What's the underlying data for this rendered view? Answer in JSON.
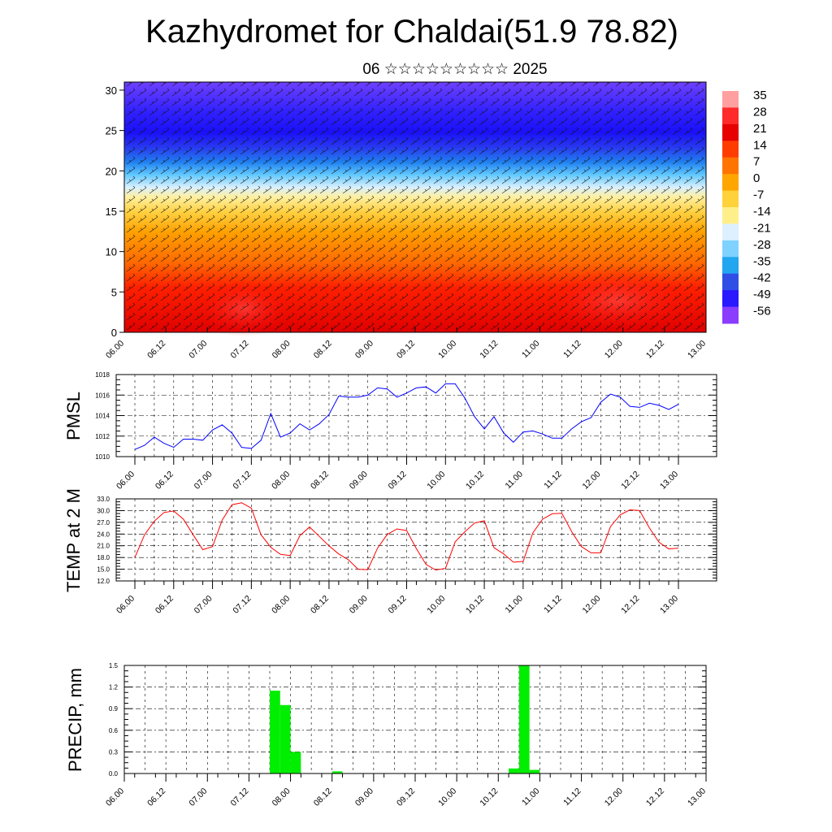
{
  "header": {
    "title": "Kazhydromet for Chaldai(51.9 78.82)",
    "subtitle": "06 ☆☆☆☆☆☆☆☆☆ 2025"
  },
  "time_ticks": [
    "06.00",
    "06.12",
    "07.00",
    "07.12",
    "08.00",
    "08.12",
    "09.00",
    "09.12",
    "10.00",
    "10.12",
    "11.00",
    "11.12",
    "12.00",
    "12.12",
    "13.00"
  ],
  "colors": {
    "pmsl": "#0000ff",
    "temp": "#ff0000",
    "precip": "#00ee00",
    "grid": "#000000"
  },
  "chart_data": [
    {
      "type": "heatmap",
      "title": "Kazhydromet for Chaldai(51.9 78.82)",
      "subtitle": "06 ☆☆☆☆☆☆☆☆☆ 2025",
      "categories": [
        "06.00",
        "06.12",
        "07.00",
        "07.12",
        "08.00",
        "08.12",
        "09.00",
        "09.12",
        "10.00",
        "10.12",
        "11.00",
        "11.12",
        "12.00",
        "12.12",
        "13.00"
      ],
      "y_ticks": [
        0,
        5,
        10,
        15,
        20,
        25,
        30
      ],
      "ylim": [
        0,
        31
      ],
      "colorbar": {
        "labels": [
          "35",
          "28",
          "21",
          "14",
          "7",
          "0",
          "-7",
          "-14",
          "-21",
          "-28",
          "-35",
          "-42",
          "-49",
          "-56"
        ],
        "colors": [
          "#ff9f9f",
          "#ff2a2a",
          "#e60000",
          "#ff3c00",
          "#ff7400",
          "#ffa600",
          "#ffd23c",
          "#ffef8a",
          "#ddf0ff",
          "#7fd2ff",
          "#22a6f0",
          "#2f4ee6",
          "#2a18ff",
          "#8a3cff"
        ]
      },
      "overlay": "wind barbs",
      "layers": [
        {
          "range": "0-8",
          "field_value": 21
        },
        {
          "range": "8-15",
          "field_value": 7
        },
        {
          "range": "15-18",
          "field_value": -14
        },
        {
          "range": "18-21",
          "field_value": -35
        },
        {
          "range": "21-31",
          "field_value": -56
        }
      ]
    },
    {
      "type": "line",
      "ylabel": "PMSL",
      "ylim": [
        1010,
        1018
      ],
      "y_ticks": [
        "1010",
        "1012",
        "1014",
        "1016",
        "1018"
      ],
      "categories": [
        "06.00",
        "06.12",
        "07.00",
        "07.12",
        "08.00",
        "08.12",
        "09.00",
        "09.12",
        "10.00",
        "10.12",
        "11.00",
        "11.12",
        "12.00",
        "12.12",
        "13.00"
      ],
      "x": [
        0,
        1,
        2,
        3,
        4,
        5,
        6,
        7,
        8,
        9,
        10,
        11,
        12,
        13,
        14,
        15,
        16,
        17,
        18,
        19,
        20,
        21,
        22,
        23,
        24,
        25,
        26,
        27,
        28,
        29,
        30,
        31,
        32,
        33,
        34,
        35,
        36,
        37,
        38,
        39,
        40,
        41,
        42,
        43,
        44,
        45,
        46,
        47,
        48,
        49,
        50,
        51,
        52,
        53,
        54,
        55,
        56
      ],
      "series": [
        {
          "values": [
            1010.7,
            1011.1,
            1011.9,
            1011.3,
            1010.9,
            1011.7,
            1011.7,
            1011.6,
            1012.6,
            1013.1,
            1012.3,
            1010.9,
            1010.8,
            1011.6,
            1014.2,
            1011.9,
            1012.3,
            1013.2,
            1012.6,
            1013.2,
            1014.1,
            1015.9,
            1015.8,
            1015.8,
            1016.0,
            1016.7,
            1016.6,
            1015.8,
            1016.2,
            1016.7,
            1016.8,
            1016.2,
            1017.1,
            1017.1,
            1015.7,
            1013.9,
            1012.7,
            1013.9,
            1012.3,
            1011.4,
            1012.4,
            1012.5,
            1012.2,
            1011.8,
            1011.8,
            1012.7,
            1013.4,
            1013.8,
            1015.3,
            1016.1,
            1015.8,
            1014.9,
            1014.8,
            1015.2,
            1015.0,
            1014.6,
            1015.1
          ]
        }
      ]
    },
    {
      "type": "line",
      "ylabel": "TEMP at 2 M",
      "ylim": [
        12,
        33
      ],
      "y_ticks": [
        "12.0",
        "15.0",
        "18.0",
        "21.0",
        "24.0",
        "27.0",
        "30.0",
        "33.0"
      ],
      "categories": [
        "06.00",
        "06.12",
        "07.00",
        "07.12",
        "08.00",
        "08.12",
        "09.00",
        "09.12",
        "10.00",
        "10.12",
        "11.00",
        "11.12",
        "12.00",
        "12.12",
        "13.00"
      ],
      "x": [
        0,
        1,
        2,
        3,
        4,
        5,
        6,
        7,
        8,
        9,
        10,
        11,
        12,
        13,
        14,
        15,
        16,
        17,
        18,
        19,
        20,
        21,
        22,
        23,
        24,
        25,
        26,
        27,
        28,
        29,
        30,
        31,
        32,
        33,
        34,
        35,
        36,
        37,
        38,
        39,
        40,
        41,
        42,
        43,
        44,
        45,
        46,
        47,
        48,
        49,
        50,
        51,
        52,
        53,
        54,
        55,
        56
      ],
      "series": [
        {
          "values": [
            18.0,
            23.8,
            27.3,
            29.5,
            29.9,
            27.8,
            23.8,
            20.0,
            20.8,
            27.6,
            31.5,
            32.0,
            30.6,
            23.8,
            20.6,
            18.8,
            18.5,
            23.6,
            25.8,
            23.4,
            21.0,
            18.9,
            17.4,
            15.0,
            14.9,
            20.4,
            23.9,
            25.3,
            24.9,
            20.3,
            16.2,
            14.8,
            15.2,
            22.0,
            24.6,
            26.8,
            27.4,
            20.5,
            18.9,
            16.8,
            17.0,
            24.3,
            27.8,
            29.2,
            29.3,
            24.6,
            20.8,
            19.2,
            19.2,
            25.9,
            28.9,
            30.2,
            30.0,
            25.6,
            21.9,
            20.2,
            20.4
          ]
        }
      ]
    },
    {
      "type": "bar",
      "ylabel": "PRECIP, mm",
      "ylim": [
        0,
        1.5
      ],
      "y_ticks": [
        "0.0",
        "0.3",
        "0.6",
        "0.9",
        "1.2",
        "1.5"
      ],
      "categories": [
        "06.00",
        "06.12",
        "07.00",
        "07.12",
        "08.00",
        "08.12",
        "09.00",
        "09.12",
        "10.00",
        "10.12",
        "11.00",
        "11.12",
        "12.00",
        "12.12",
        "13.00"
      ],
      "x": [
        14.5,
        15.5,
        16.5,
        20.5,
        37.5,
        38.5,
        39.5
      ],
      "values": [
        1.15,
        0.95,
        0.3,
        0.03,
        0.07,
        1.5,
        0.05
      ]
    }
  ]
}
